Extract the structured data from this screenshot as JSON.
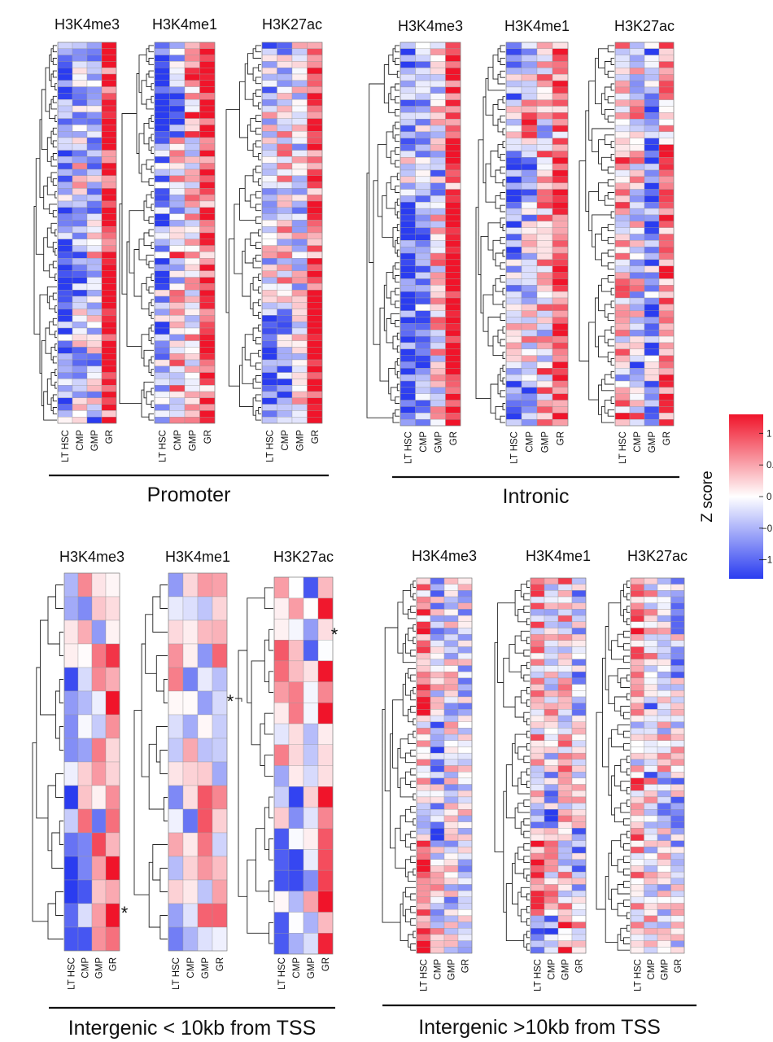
{
  "chart_data": {
    "type": "heatmap",
    "columns": [
      "LT HSC",
      "CMP",
      "GMP",
      "GR"
    ],
    "legend": {
      "title": "Z score",
      "ticks": [
        {
          "label": "1",
          "value": 1
        },
        {
          "label": "0.5",
          "value": 0.5
        },
        {
          "label": "0",
          "value": 0
        },
        {
          "label": "−0.5",
          "value": -0.5
        },
        {
          "label": "−1",
          "value": -1
        }
      ],
      "range": [
        -1.3,
        1.3
      ],
      "colors": {
        "low": "#2a3cf0",
        "mid": "#ffffff",
        "high": "#f0142a"
      }
    },
    "groups": [
      {
        "key": "promoter",
        "region": "Promoter",
        "panels": [
          {
            "title": "H3K4me3",
            "rows": 60
          },
          {
            "title": "H3K4me1",
            "rows": 60
          },
          {
            "title": "H3K27ac",
            "rows": 60
          }
        ]
      },
      {
        "key": "intronic",
        "region": "Intronic",
        "panels": [
          {
            "title": "H3K4me3",
            "rows": 60
          },
          {
            "title": "H3K4me1",
            "rows": 60
          },
          {
            "title": "H3K27ac",
            "rows": 60
          }
        ]
      },
      {
        "key": "intergenic-near",
        "region": "Intergenic < 10kb from TSS",
        "panels": [
          {
            "title": "H3K4me3",
            "rows": 16
          },
          {
            "title": "H3K4me1",
            "rows": 16
          },
          {
            "title": "H3K27ac",
            "rows": 18
          }
        ]
      },
      {
        "key": "intergenic-far",
        "region": "Intergenic >10kb from TSS",
        "panels": [
          {
            "title": "H3K4me3",
            "rows": 60
          },
          {
            "title": "H3K4me1",
            "rows": 60
          },
          {
            "title": "H3K27ac",
            "rows": 60
          }
        ]
      }
    ],
    "annotations": [
      {
        "text": "*",
        "group": "intergenic-near",
        "panel": "H3K4me3",
        "note": "near bottom row, GR side"
      },
      {
        "text": "*",
        "group": "intergenic-near",
        "panel": "H3K4me1",
        "note": "between H3K4me1 and H3K27ac"
      },
      {
        "text": "*",
        "group": "intergenic-near",
        "panel": "H3K27ac",
        "note": "near top rows, GR side"
      }
    ]
  }
}
